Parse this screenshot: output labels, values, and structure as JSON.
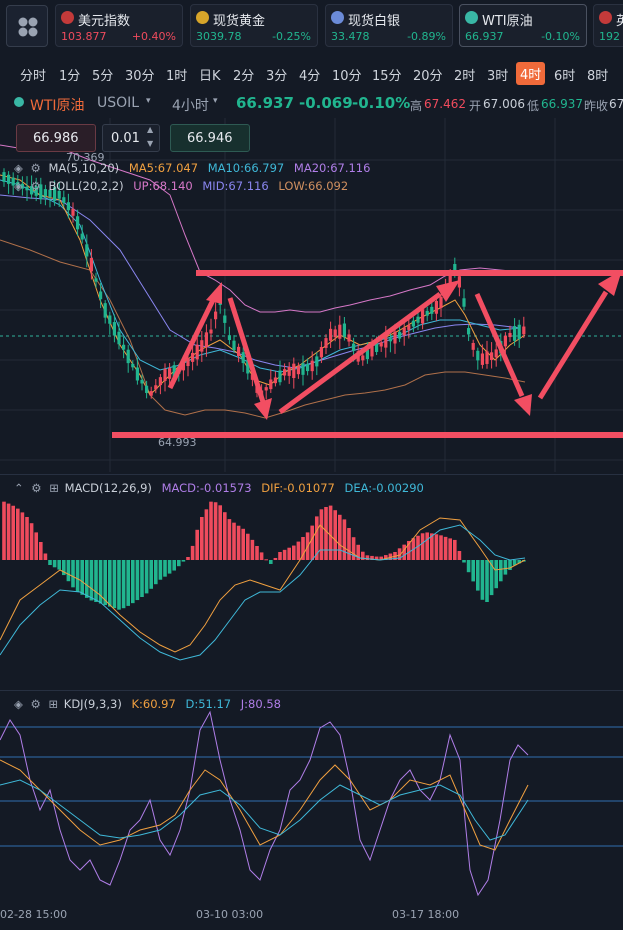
{
  "tickers": [
    {
      "name": "美元指数",
      "price": "103.877",
      "change": "+0.40%",
      "dir": "up",
      "icon_color": "#c33a3a",
      "icon": "us-flag-icon"
    },
    {
      "name": "现货黄金",
      "price": "3039.78",
      "change": "-0.25%",
      "dir": "dn",
      "icon_color": "#d7a52a",
      "icon": "gold-icon"
    },
    {
      "name": "现货白银",
      "price": "33.478",
      "change": "-0.89%",
      "dir": "dn",
      "icon_color": "#6b8bd8",
      "icon": "silver-icon"
    },
    {
      "name": "WTI原油",
      "price": "66.937",
      "change": "-0.10%",
      "dir": "dn",
      "icon_color": "#39b7a5",
      "icon": "oil-icon"
    },
    {
      "name": "英",
      "price": "192",
      "change": "",
      "dir": "dn",
      "icon_color": "#c33a3a",
      "icon": "uk-flag-icon"
    }
  ],
  "timeframes": [
    "分时",
    "1分",
    "5分",
    "30分",
    "1时",
    "日K",
    "2分",
    "3分",
    "4分",
    "10分",
    "15分",
    "20分",
    "2时",
    "3时",
    "4时",
    "6时",
    "8时"
  ],
  "selected_timeframe": "4时",
  "header": {
    "symbol": "WTI原油",
    "code": "USOIL",
    "period": "4小时",
    "price": "66.937",
    "change": "-0.069",
    "pct": "-0.10%",
    "high_label": "高",
    "high": "67.462",
    "open_label": "开",
    "open": "67.006",
    "low_label": "低",
    "low": "66.937",
    "prev_label": "昨收",
    "prev": "67"
  },
  "order": {
    "bid": "66.986",
    "lot": "0.01",
    "ask": "66.946"
  },
  "main_chart": {
    "max_label": "70.369",
    "min_label": "64.993",
    "ma": {
      "label": "MA(5,10,20)",
      "ma5": "MA5:67.047",
      "ma10": "MA10:66.797",
      "ma20": "MA20:67.116"
    },
    "boll": {
      "label": "BOLL(20,2,2)",
      "up": "UP:68.140",
      "mid": "MID:67.116",
      "low": "LOW:66.092"
    }
  },
  "macd": {
    "label": "MACD(12,26,9)",
    "macd": "MACD:-0.01573",
    "dif": "DIF:-0.01077",
    "dea": "DEA:-0.00290"
  },
  "kdj": {
    "label": "KDJ(9,3,3)",
    "k": "K:60.97",
    "d": "D:51.17",
    "j": "J:80.58"
  },
  "x_axis": [
    "02-28 15:00",
    "03-10 03:00",
    "03-17 18:00"
  ],
  "colors": {
    "up": "#ef4b5d",
    "down": "#21b58f",
    "ma5": "#f0a040",
    "ma10": "#3fb8d8",
    "ma20": "#b07ee8",
    "boll_up": "#d678c8",
    "boll_mid": "#8a86f0",
    "boll_low": "#b0704a",
    "annot": "#f24e62"
  }
}
